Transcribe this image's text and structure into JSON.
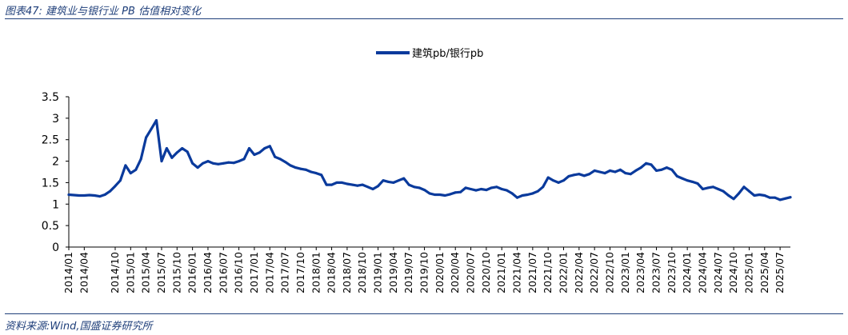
{
  "figure": {
    "title": "图表47:  建筑业与银行业 PB 估值相对变化",
    "source": "资料来源:Wind,国盛证券研究所"
  },
  "colors": {
    "series": "#0a3a9c",
    "axis": "#000000",
    "rule": "#1f3f7a"
  },
  "chart_data": {
    "type": "line",
    "title": "",
    "xlabel": "",
    "ylabel": "",
    "ylim": [
      0,
      3.5
    ],
    "yticks": [
      0,
      0.5,
      1,
      1.5,
      2,
      2.5,
      3,
      3.5
    ],
    "xlim": [
      "2014/01",
      "2025/09"
    ],
    "x_tick_labels": [
      "2014/01",
      "2014/04",
      "2014/10",
      "2015/01",
      "2015/04",
      "2015/07",
      "2015/10",
      "2016/01",
      "2016/04",
      "2016/07",
      "2016/10",
      "2017/01",
      "2017/04",
      "2017/07",
      "2017/10",
      "2018/01",
      "2018/04",
      "2018/07",
      "2018/10",
      "2019/01",
      "2019/04",
      "2019/07",
      "2019/10",
      "2020/01",
      "2020/04",
      "2020/07",
      "2020/10",
      "2021/01",
      "2021/04",
      "2021/07",
      "2021/10",
      "2022/01",
      "2022/04",
      "2022/07",
      "2022/10",
      "2023/01",
      "2023/04",
      "2023/07",
      "2023/10",
      "2024/01",
      "2024/04",
      "2024/07",
      "2024/10",
      "2025/01",
      "2025/04",
      "2025/07"
    ],
    "legend": {
      "position": "top-center",
      "entries": [
        "建筑pb/银行pb"
      ]
    },
    "series": [
      {
        "name": "建筑pb/银行pb",
        "points": [
          [
            "2014/01",
            1.22
          ],
          [
            "2014/02",
            1.21
          ],
          [
            "2014/03",
            1.2
          ],
          [
            "2014/04",
            1.2
          ],
          [
            "2014/05",
            1.21
          ],
          [
            "2014/06",
            1.2
          ],
          [
            "2014/07",
            1.18
          ],
          [
            "2014/08",
            1.22
          ],
          [
            "2014/09",
            1.3
          ],
          [
            "2014/10",
            1.42
          ],
          [
            "2014/11",
            1.55
          ],
          [
            "2014/12",
            1.9
          ],
          [
            "2015/01",
            1.72
          ],
          [
            "2015/02",
            1.8
          ],
          [
            "2015/03",
            2.05
          ],
          [
            "2015/04",
            2.55
          ],
          [
            "2015/05",
            2.75
          ],
          [
            "2015/06",
            2.95
          ],
          [
            "2015/07",
            2.0
          ],
          [
            "2015/08",
            2.3
          ],
          [
            "2015/09",
            2.08
          ],
          [
            "2015/10",
            2.2
          ],
          [
            "2015/11",
            2.3
          ],
          [
            "2015/12",
            2.22
          ],
          [
            "2016/01",
            1.95
          ],
          [
            "2016/02",
            1.85
          ],
          [
            "2016/03",
            1.95
          ],
          [
            "2016/04",
            2.0
          ],
          [
            "2016/05",
            1.95
          ],
          [
            "2016/06",
            1.93
          ],
          [
            "2016/07",
            1.95
          ],
          [
            "2016/08",
            1.97
          ],
          [
            "2016/09",
            1.96
          ],
          [
            "2016/10",
            2.0
          ],
          [
            "2016/11",
            2.05
          ],
          [
            "2016/12",
            2.3
          ],
          [
            "2017/01",
            2.15
          ],
          [
            "2017/02",
            2.2
          ],
          [
            "2017/03",
            2.3
          ],
          [
            "2017/04",
            2.35
          ],
          [
            "2017/05",
            2.1
          ],
          [
            "2017/06",
            2.05
          ],
          [
            "2017/07",
            1.98
          ],
          [
            "2017/08",
            1.9
          ],
          [
            "2017/09",
            1.85
          ],
          [
            "2017/10",
            1.82
          ],
          [
            "2017/11",
            1.8
          ],
          [
            "2017/12",
            1.75
          ],
          [
            "2018/01",
            1.72
          ],
          [
            "2018/02",
            1.68
          ],
          [
            "2018/03",
            1.45
          ],
          [
            "2018/04",
            1.45
          ],
          [
            "2018/05",
            1.5
          ],
          [
            "2018/06",
            1.5
          ],
          [
            "2018/07",
            1.47
          ],
          [
            "2018/08",
            1.45
          ],
          [
            "2018/09",
            1.43
          ],
          [
            "2018/10",
            1.45
          ],
          [
            "2018/11",
            1.4
          ],
          [
            "2018/12",
            1.35
          ],
          [
            "2019/01",
            1.42
          ],
          [
            "2019/02",
            1.55
          ],
          [
            "2019/03",
            1.52
          ],
          [
            "2019/04",
            1.5
          ],
          [
            "2019/05",
            1.55
          ],
          [
            "2019/06",
            1.6
          ],
          [
            "2019/07",
            1.45
          ],
          [
            "2019/08",
            1.4
          ],
          [
            "2019/09",
            1.38
          ],
          [
            "2019/10",
            1.33
          ],
          [
            "2019/11",
            1.25
          ],
          [
            "2019/12",
            1.22
          ],
          [
            "2020/01",
            1.22
          ],
          [
            "2020/02",
            1.2
          ],
          [
            "2020/03",
            1.23
          ],
          [
            "2020/04",
            1.27
          ],
          [
            "2020/05",
            1.28
          ],
          [
            "2020/06",
            1.38
          ],
          [
            "2020/07",
            1.35
          ],
          [
            "2020/08",
            1.32
          ],
          [
            "2020/09",
            1.35
          ],
          [
            "2020/10",
            1.33
          ],
          [
            "2020/11",
            1.38
          ],
          [
            "2020/12",
            1.4
          ],
          [
            "2021/01",
            1.35
          ],
          [
            "2021/02",
            1.32
          ],
          [
            "2021/03",
            1.25
          ],
          [
            "2021/04",
            1.15
          ],
          [
            "2021/05",
            1.2
          ],
          [
            "2021/06",
            1.22
          ],
          [
            "2021/07",
            1.25
          ],
          [
            "2021/08",
            1.3
          ],
          [
            "2021/09",
            1.4
          ],
          [
            "2021/10",
            1.62
          ],
          [
            "2021/11",
            1.55
          ],
          [
            "2021/12",
            1.5
          ],
          [
            "2022/01",
            1.55
          ],
          [
            "2022/02",
            1.65
          ],
          [
            "2022/03",
            1.68
          ],
          [
            "2022/04",
            1.7
          ],
          [
            "2022/05",
            1.66
          ],
          [
            "2022/06",
            1.7
          ],
          [
            "2022/07",
            1.78
          ],
          [
            "2022/08",
            1.75
          ],
          [
            "2022/09",
            1.72
          ],
          [
            "2022/10",
            1.78
          ],
          [
            "2022/11",
            1.75
          ],
          [
            "2022/12",
            1.8
          ],
          [
            "2023/01",
            1.72
          ],
          [
            "2023/02",
            1.7
          ],
          [
            "2023/03",
            1.78
          ],
          [
            "2023/04",
            1.85
          ],
          [
            "2023/05",
            1.95
          ],
          [
            "2023/06",
            1.92
          ],
          [
            "2023/07",
            1.78
          ],
          [
            "2023/08",
            1.8
          ],
          [
            "2023/09",
            1.85
          ],
          [
            "2023/10",
            1.8
          ],
          [
            "2023/11",
            1.65
          ],
          [
            "2023/12",
            1.6
          ],
          [
            "2024/01",
            1.55
          ],
          [
            "2024/02",
            1.52
          ],
          [
            "2024/03",
            1.48
          ],
          [
            "2024/04",
            1.35
          ],
          [
            "2024/05",
            1.38
          ],
          [
            "2024/06",
            1.4
          ],
          [
            "2024/07",
            1.35
          ],
          [
            "2024/08",
            1.3
          ],
          [
            "2024/09",
            1.2
          ],
          [
            "2024/10",
            1.12
          ],
          [
            "2024/11",
            1.25
          ],
          [
            "2024/12",
            1.4
          ],
          [
            "2025/01",
            1.3
          ],
          [
            "2025/02",
            1.2
          ],
          [
            "2025/03",
            1.22
          ],
          [
            "2025/04",
            1.2
          ],
          [
            "2025/05",
            1.15
          ],
          [
            "2025/06",
            1.15
          ],
          [
            "2025/07",
            1.1
          ],
          [
            "2025/08",
            1.13
          ],
          [
            "2025/09",
            1.16
          ]
        ]
      }
    ]
  }
}
